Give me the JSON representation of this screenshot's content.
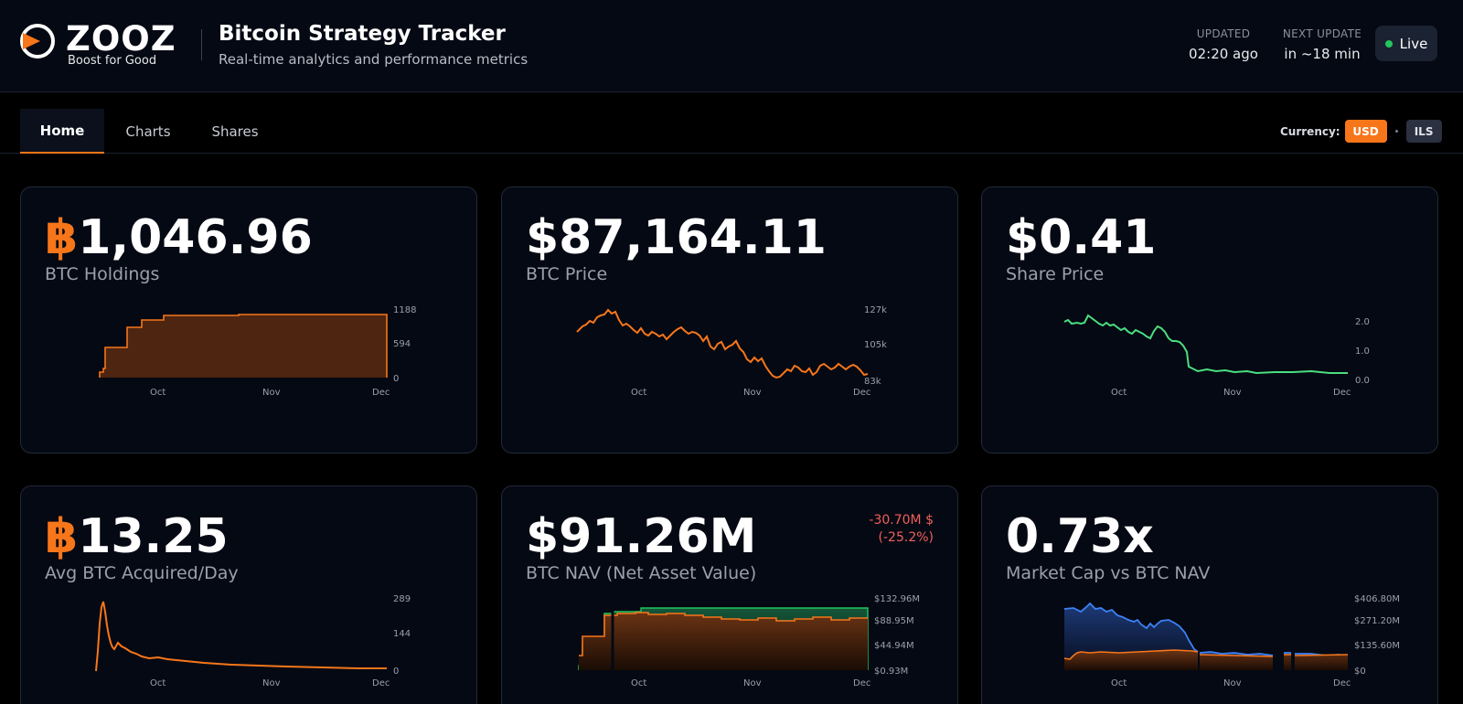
{
  "header": {
    "brand": "ZOOZ",
    "tagline": "Boost for Good",
    "title": "Bitcoin Strategy Tracker",
    "subtitle": "Real-time analytics and performance metrics",
    "updated_label": "UPDATED",
    "updated_value": "02:20 ago",
    "next_label": "NEXT UPDATE",
    "next_value": "in ~18 min",
    "live_label": "Live"
  },
  "tabs": [
    {
      "label": "Home",
      "active": true
    },
    {
      "label": "Charts",
      "active": false
    },
    {
      "label": "Shares",
      "active": false
    }
  ],
  "currency": {
    "label": "Currency:",
    "options": [
      "USD",
      "ILS"
    ],
    "selected": "USD"
  },
  "cards": [
    {
      "value_symbol": "฿",
      "value": "1,046.96",
      "label": "BTC Holdings",
      "chart": {
        "type": "step-area",
        "color": "#f7761a",
        "y_ticks": [
          "1188",
          "594",
          "0"
        ],
        "x_ticks": [
          "Oct",
          "Nov",
          "Dec"
        ]
      }
    },
    {
      "value": "$87,164.11",
      "label": "BTC Price",
      "chart": {
        "type": "line",
        "color": "#f7761a",
        "y_ticks": [
          "127k",
          "105k",
          "83k"
        ],
        "x_ticks": [
          "Oct",
          "Nov",
          "Dec"
        ]
      }
    },
    {
      "value": "$0.41",
      "label": "Share Price",
      "chart": {
        "type": "line",
        "color": "#4ade80",
        "y_ticks": [
          "2.0",
          "1.0",
          "0.0"
        ],
        "x_ticks": [
          "Oct",
          "Nov",
          "Dec"
        ]
      }
    },
    {
      "value_symbol": "฿",
      "value": "13.25",
      "label": "Avg BTC Acquired/Day",
      "chart": {
        "type": "line",
        "color": "#f7761a",
        "y_ticks": [
          "289",
          "144",
          "0"
        ],
        "x_ticks": [
          "Oct",
          "Nov",
          "Dec"
        ]
      }
    },
    {
      "value": "$91.26M",
      "label": "BTC NAV (Net Asset Value)",
      "delta": "-30.70M $",
      "delta_pct": "(-25.2%)",
      "chart": {
        "type": "dual-area",
        "colors": [
          "#22c55e",
          "#f7761a"
        ],
        "y_ticks": [
          "$132.96M",
          "$88.95M",
          "$44.94M",
          "$0.93M"
        ],
        "x_ticks": [
          "Oct",
          "Nov",
          "Dec"
        ]
      }
    },
    {
      "value": "0.73x",
      "label": "Market Cap vs BTC NAV",
      "chart": {
        "type": "dual-area",
        "colors": [
          "#3b82f6",
          "#f7761a"
        ],
        "y_ticks": [
          "$406.80M",
          "$271.20M",
          "$135.60M",
          "$0"
        ],
        "x_ticks": [
          "Oct",
          "Nov",
          "Dec"
        ]
      }
    }
  ]
}
